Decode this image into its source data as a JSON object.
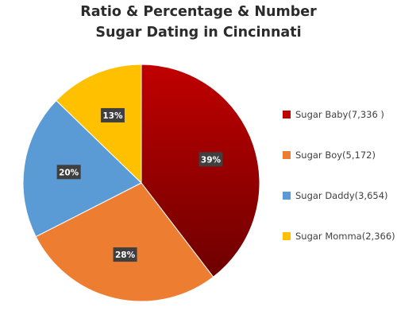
{
  "chart_data": {
    "type": "pie",
    "title_lines": [
      "Ratio & Percentage & Number",
      "Sugar Dating in Cincinnati"
    ],
    "series": [
      {
        "name": "Sugar Baby(7,336 )",
        "value": 7336,
        "percent_label": "39%",
        "color": "#c00000"
      },
      {
        "name": "Sugar Boy(5,172)",
        "value": 5172,
        "percent_label": "28%",
        "color": "#ed7d31"
      },
      {
        "name": "Sugar Daddy(3,654)",
        "value": 3654,
        "percent_label": "20%",
        "color": "#5b9bd5"
      },
      {
        "name": "Sugar Momma(2,366)",
        "value": 2366,
        "percent_label": "13%",
        "color": "#ffc000"
      }
    ],
    "legend_position": "right",
    "start_angle": "12 o'clock, clockwise"
  }
}
